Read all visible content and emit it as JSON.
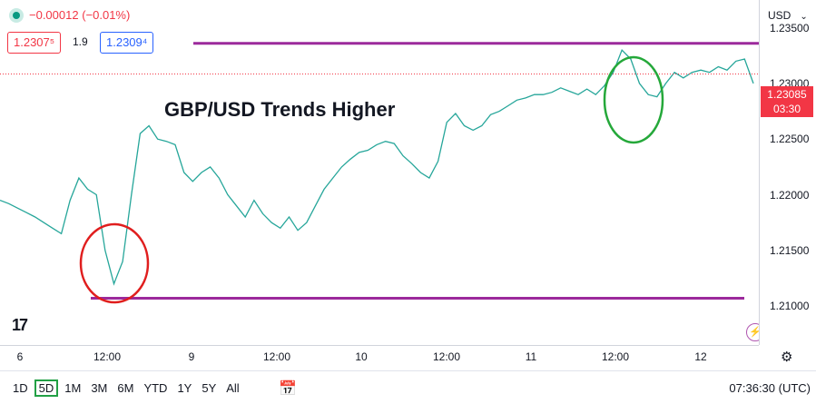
{
  "header": {
    "change": "−0.00012 (−0.01%)",
    "sell_price": "1.2307⁵",
    "spread": "1.9",
    "buy_price": "1.2309⁴"
  },
  "annotation_title": "GBP/USD Trends Higher",
  "currency_selector": "USD",
  "last_price": {
    "value": "1.23085",
    "countdown": "03:30"
  },
  "time_axis": {
    "labels": [
      "6",
      "12:00",
      "9",
      "12:00",
      "10",
      "12:00",
      "11",
      "12:00",
      "12"
    ]
  },
  "period_buttons": [
    "1D",
    "5D",
    "1M",
    "3M",
    "6M",
    "YTD",
    "1Y",
    "5Y",
    "All"
  ],
  "active_period": "5D",
  "clock": "07:36:30 (UTC)",
  "chart_data": {
    "type": "line",
    "ylim": [
      1.2065,
      1.2375
    ],
    "yticks": [
      1.21,
      1.215,
      1.22,
      1.225,
      1.23,
      1.235
    ],
    "ytick_labels": [
      "1.21000",
      "1.21500",
      "1.22000",
      "1.22500",
      "1.23000",
      "1.23500"
    ],
    "series": [
      {
        "color": "#26a69a",
        "values": [
          1.2195,
          1.2192,
          1.2188,
          1.2184,
          1.218,
          1.2175,
          1.217,
          1.2165,
          1.2195,
          1.2215,
          1.2205,
          1.22,
          1.215,
          1.212,
          1.214,
          1.22,
          1.2255,
          1.2262,
          1.225,
          1.2248,
          1.2245,
          1.222,
          1.2212,
          1.222,
          1.2225,
          1.2215,
          1.22,
          1.219,
          1.218,
          1.2195,
          1.2183,
          1.2175,
          1.217,
          1.218,
          1.2168,
          1.2175,
          1.219,
          1.2205,
          1.2215,
          1.2225,
          1.2232,
          1.2238,
          1.224,
          1.2245,
          1.2248,
          1.2246,
          1.2235,
          1.2228,
          1.222,
          1.2215,
          1.223,
          1.2265,
          1.2273,
          1.2262,
          1.2258,
          1.2262,
          1.2272,
          1.2275,
          1.228,
          1.2285,
          1.2287,
          1.229,
          1.229,
          1.2292,
          1.2296,
          1.2293,
          1.229,
          1.2295,
          1.229,
          1.2298,
          1.231,
          1.233,
          1.2322,
          1.23,
          1.229,
          1.2288,
          1.23,
          1.231,
          1.2305,
          1.231,
          1.2312,
          1.231,
          1.2315,
          1.2312,
          1.232,
          1.2322,
          1.23
        ]
      }
    ],
    "annotations": {
      "resistance": 1.2336,
      "support": 1.2107,
      "circle_low_label": "red",
      "circle_high_label": "green"
    }
  }
}
